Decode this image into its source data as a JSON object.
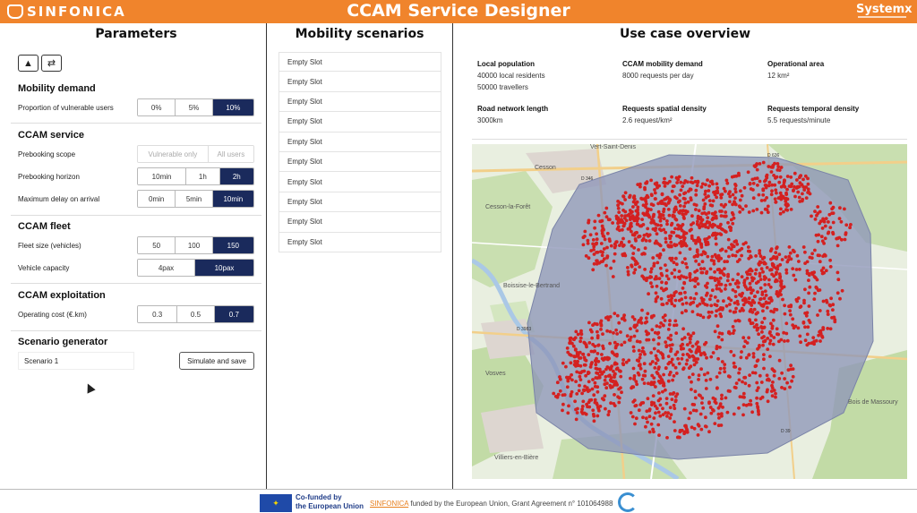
{
  "header": {
    "logo_left": "SINFONICA",
    "title": "CCAM Service Designer",
    "logo_right": "Systemx"
  },
  "parameters": {
    "title": "Parameters",
    "tool_icons": [
      "eraser-icon",
      "shuffle-icon"
    ],
    "mobility_demand": {
      "title": "Mobility demand",
      "vulnerable": {
        "label": "Proportion of vulnerable users",
        "options": [
          "0%",
          "5%",
          "10%"
        ],
        "selected": "10%"
      }
    },
    "ccam_service": {
      "title": "CCAM service",
      "prebooking_scope": {
        "label": "Prebooking scope",
        "options": [
          "Vulnerable only",
          "All users"
        ],
        "selected": ""
      },
      "prebooking_horizon": {
        "label": "Prebooking horizon",
        "options": [
          "10min",
          "1h",
          "2h"
        ],
        "selected": "2h"
      },
      "max_delay": {
        "label": "Maximum delay on arrival",
        "options": [
          "0min",
          "5min",
          "10min"
        ],
        "selected": "10min"
      }
    },
    "ccam_fleet": {
      "title": "CCAM fleet",
      "fleet_size": {
        "label": "Fleet size (vehicles)",
        "options": [
          "50",
          "100",
          "150"
        ],
        "selected": "150"
      },
      "capacity": {
        "label": "Vehicle capacity",
        "options": [
          "4pax",
          "10pax"
        ],
        "selected": "10pax"
      }
    },
    "ccam_exploitation": {
      "title": "CCAM exploitation",
      "operating_cost": {
        "label": "Operating cost (€.km)",
        "options": [
          "0.3",
          "0.5",
          "0.7"
        ],
        "selected": "0.7"
      }
    },
    "scenario_generator": {
      "title": "Scenario generator",
      "name_value": "Scenario 1",
      "simulate_label": "Simulate and save"
    }
  },
  "scenarios": {
    "title": "Mobility scenarios",
    "slots": [
      "Empty Slot",
      "Empty Slot",
      "Empty Slot",
      "Empty Slot",
      "Empty Slot",
      "Empty Slot",
      "Empty Slot",
      "Empty Slot",
      "Empty Slot",
      "Empty Slot"
    ]
  },
  "overview": {
    "title": "Use case overview",
    "stats": [
      {
        "label": "Local population",
        "values": [
          "40000 local residents",
          "50000 travellers"
        ]
      },
      {
        "label": "CCAM mobility demand",
        "values": [
          "8000 requests per day"
        ]
      },
      {
        "label": "Operational area",
        "values": [
          "12 km²"
        ]
      },
      {
        "label": "Road network length",
        "values": [
          "3000km"
        ]
      },
      {
        "label": "Requests spatial density",
        "values": [
          "2.6 request/km²"
        ]
      },
      {
        "label": "Requests temporal density",
        "values": [
          "5.5 requests/minute"
        ]
      }
    ],
    "map": {
      "place_labels": [
        "Vert-Saint-Denis",
        "Cesson",
        "Cesson-la-Forêt",
        "Boissise-le-Bertrand",
        "Vosves",
        "Villiers-en-Bière",
        "Bois de Massoury"
      ],
      "road_labels": [
        "D 346",
        "D 636",
        "D 3983",
        "D 39"
      ],
      "area_color": "#8e96b8",
      "point_color": "#d42020"
    }
  },
  "footer": {
    "eu_line1": "Co-funded by",
    "eu_line2": "the European Union",
    "project_link": "SINFONICA",
    "funding_text": "funded by the European Union, Grant Agreement n° 101064988"
  }
}
